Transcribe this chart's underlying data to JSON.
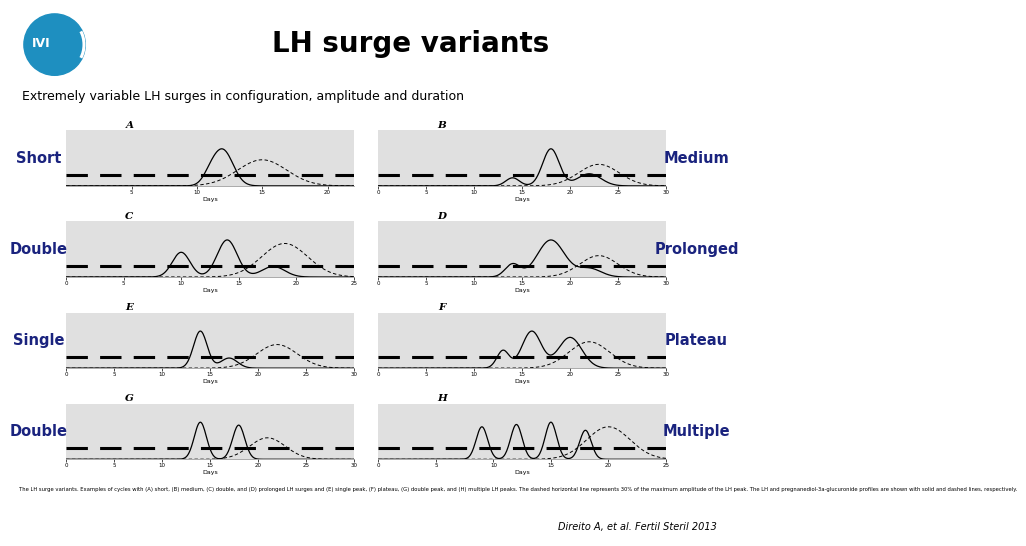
{
  "title": "LH surge variants",
  "subtitle": "Extremely variable LH surges in configuration, amplitude and duration",
  "citation": "Direito A, et al. Fertil Steril 2013",
  "caption": "The LH surge variants. Examples of cycles with (A) short, (B) medium, (C) double, and (D) prolonged LH surges and (E) single peak, (F) plateau, (G) double peak, and (H) multiple LH peaks. The dashed horizontal line represents 30% of the maximum amplitude of the LH peak. The LH and pregnanediol-3a-glucuronide profiles are shown with solid and dashed lines, respectively.",
  "slide_bg": "#ffffff",
  "panel_bg": "#d4d4d4",
  "plot_bg": "#e0e0e0",
  "label_color": "#1a237e",
  "title_color": "#000000",
  "subtitle_color": "#000000",
  "ivi_blue": "#1e8fc0",
  "plots": [
    {
      "label": "Short",
      "sublabel": "A",
      "col": 0,
      "row": 0,
      "xmin": 0,
      "xmax": 22,
      "xticks": [
        5,
        10,
        15,
        20
      ]
    },
    {
      "label": "Medium",
      "sublabel": "B",
      "col": 1,
      "row": 0,
      "xmin": 0,
      "xmax": 30,
      "xticks": [
        0,
        5,
        10,
        15,
        20,
        25,
        30
      ]
    },
    {
      "label": "Double",
      "sublabel": "C",
      "col": 0,
      "row": 1,
      "xmin": 0,
      "xmax": 25,
      "xticks": [
        0,
        5,
        10,
        15,
        20,
        25
      ]
    },
    {
      "label": "Prolonged",
      "sublabel": "D",
      "col": 1,
      "row": 1,
      "xmin": 0,
      "xmax": 30,
      "xticks": [
        0,
        5,
        10,
        15,
        20,
        25,
        30
      ]
    },
    {
      "label": "Single",
      "sublabel": "E",
      "col": 0,
      "row": 2,
      "xmin": 0,
      "xmax": 30,
      "xticks": [
        0,
        5,
        10,
        15,
        20,
        25,
        30
      ]
    },
    {
      "label": "Plateau",
      "sublabel": "F",
      "col": 1,
      "row": 2,
      "xmin": 0,
      "xmax": 30,
      "xticks": [
        0,
        5,
        10,
        15,
        20,
        25,
        30
      ]
    },
    {
      "label": "Double",
      "sublabel": "G",
      "col": 0,
      "row": 3,
      "xmin": 0,
      "xmax": 30,
      "xticks": [
        0,
        5,
        10,
        15,
        20,
        25,
        30
      ]
    },
    {
      "label": "Multiple",
      "sublabel": "H",
      "col": 1,
      "row": 3,
      "xmin": 0,
      "xmax": 25,
      "xticks": [
        0,
        5,
        10,
        15,
        20,
        25
      ]
    }
  ]
}
